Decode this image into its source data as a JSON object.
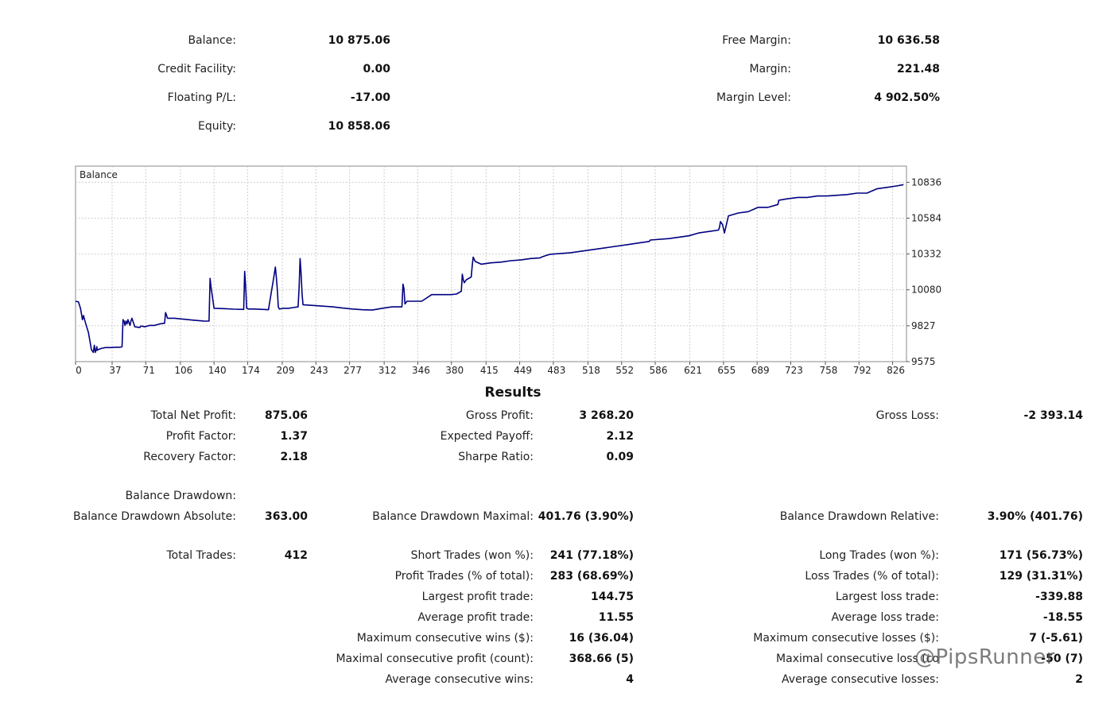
{
  "account": {
    "balance": {
      "label": "Balance:",
      "value": "10 875.06"
    },
    "credit": {
      "label": "Credit Facility:",
      "value": "0.00"
    },
    "floating": {
      "label": "Floating P/L:",
      "value": "-17.00"
    },
    "equity": {
      "label": "Equity:",
      "value": "10 858.06"
    },
    "free_margin": {
      "label": "Free Margin:",
      "value": "10 636.58"
    },
    "margin": {
      "label": "Margin:",
      "value": "221.48"
    },
    "margin_level": {
      "label": "Margin Level:",
      "value": "4 902.50%"
    }
  },
  "chart_data": {
    "type": "line",
    "title": "Balance",
    "x_ticks": [
      "0",
      "37",
      "71",
      "106",
      "140",
      "174",
      "209",
      "243",
      "277",
      "312",
      "346",
      "380",
      "415",
      "449",
      "483",
      "518",
      "552",
      "586",
      "621",
      "655",
      "689",
      "723",
      "758",
      "792",
      "826"
    ],
    "y_ticks": [
      "10836",
      "10584",
      "10332",
      "10080",
      "9827",
      "9575"
    ],
    "xlim": [
      0,
      840
    ],
    "ylim": [
      9575,
      10950
    ],
    "grid": true,
    "line_color": "#000080",
    "series": [
      {
        "x": [
          0,
          3,
          5,
          7,
          8,
          10,
          13,
          15,
          16,
          18,
          19,
          20,
          21,
          21.5,
          22,
          23,
          25,
          27,
          28,
          29,
          30,
          35,
          40,
          45,
          46,
          47,
          48,
          49,
          50,
          51,
          52,
          53,
          55,
          56,
          57,
          60,
          65,
          66,
          67,
          70,
          75,
          80,
          85,
          90,
          91,
          92,
          93,
          100,
          110,
          120,
          130,
          135,
          136,
          137,
          140,
          150,
          160,
          170,
          171,
          172,
          173,
          175,
          180,
          190,
          195,
          200,
          202,
          203,
          204,
          205,
          206,
          210,
          215,
          220,
          225,
          226,
          227,
          228,
          229,
          230,
          240,
          250,
          260,
          270,
          271,
          280,
          290,
          300,
          310,
          320,
          330,
          331,
          332,
          333,
          335,
          340,
          345,
          348,
          350,
          360,
          370,
          380,
          385,
          390,
          391,
          392,
          393,
          395,
          400,
          401,
          402,
          404,
          410,
          420,
          430,
          440,
          450,
          460,
          470,
          471,
          475,
          480,
          500,
          520,
          540,
          560,
          570,
          580,
          581,
          600,
          620,
          630,
          640,
          650,
          651,
          652,
          654,
          655,
          656,
          660,
          670,
          680,
          690,
          700,
          710,
          711,
          720,
          730,
          740,
          750,
          760,
          780,
          790,
          800,
          810,
          820,
          830,
          837
        ],
        "y": [
          10000,
          9995,
          9950,
          9870,
          9900,
          9850,
          9780,
          9700,
          9660,
          9640,
          9690,
          9640,
          9660,
          9680,
          9655,
          9660,
          9665,
          9670,
          9670,
          9672,
          9674,
          9674,
          9676,
          9676,
          9678,
          9680,
          9870,
          9860,
          9830,
          9860,
          9840,
          9870,
          9830,
          9860,
          9880,
          9820,
          9815,
          9825,
          9825,
          9820,
          9830,
          9830,
          9840,
          9845,
          9920,
          9900,
          9880,
          9880,
          9873,
          9866,
          9860,
          9860,
          10160,
          10100,
          9950,
          9948,
          9944,
          9942,
          10210,
          10100,
          9950,
          9945,
          9945,
          9942,
          9940,
          10150,
          10240,
          10170,
          10080,
          9960,
          9945,
          9950,
          9950,
          9955,
          9960,
          10100,
          10300,
          10200,
          10050,
          9975,
          9970,
          9965,
          9960,
          9952,
          9951,
          9945,
          9940,
          9938,
          9950,
          9960,
          9960,
          10120,
          10090,
          9980,
          10000,
          10000,
          10000,
          10000,
          10000,
          10046,
          10046,
          10046,
          10050,
          10070,
          10190,
          10150,
          10130,
          10150,
          10170,
          10250,
          10310,
          10280,
          10260,
          10270,
          10275,
          10285,
          10290,
          10300,
          10305,
          10310,
          10320,
          10330,
          10340,
          10360,
          10380,
          10400,
          10410,
          10420,
          10430,
          10440,
          10460,
          10480,
          10490,
          10500,
          10520,
          10560,
          10540,
          10510,
          10480,
          10600,
          10620,
          10630,
          10660,
          10660,
          10680,
          10710,
          10720,
          10730,
          10730,
          10740,
          10740,
          10750,
          10760,
          10760,
          10790,
          10800,
          10810,
          10820
        ]
      }
    ]
  },
  "results": {
    "title": "Results",
    "col1": [
      {
        "label": "Total Net Profit:",
        "value": "875.06"
      },
      {
        "label": "Profit Factor:",
        "value": "1.37"
      },
      {
        "label": "Recovery Factor:",
        "value": "2.18"
      },
      {
        "label": "Balance Drawdown:",
        "value": ""
      },
      {
        "label": "Balance Drawdown Absolute:",
        "value": "363.00"
      },
      {
        "label": "Total Trades:",
        "value": "412"
      }
    ],
    "col2": [
      {
        "label": "Gross Profit:",
        "value": "3 268.20"
      },
      {
        "label": "Expected Payoff:",
        "value": "2.12"
      },
      {
        "label": "Sharpe Ratio:",
        "value": "0.09"
      },
      {
        "label": "Balance Drawdown Maximal:",
        "value": "401.76 (3.90%)"
      },
      {
        "label": "Short Trades (won %):",
        "value": "241 (77.18%)"
      },
      {
        "label": "Profit Trades (% of total):",
        "value": "283 (68.69%)"
      },
      {
        "label": "Largest profit trade:",
        "value": "144.75"
      },
      {
        "label": "Average profit trade:",
        "value": "11.55"
      },
      {
        "label": "Maximum consecutive wins ($):",
        "value": "16 (36.04)"
      },
      {
        "label": "Maximal consecutive profit (count):",
        "value": "368.66 (5)"
      },
      {
        "label": "Average consecutive wins:",
        "value": "4"
      }
    ],
    "col3": [
      {
        "label": "Gross Loss:",
        "value": "-2 393.14"
      },
      {
        "label": "Balance Drawdown Relative:",
        "value": "3.90% (401.76)"
      },
      {
        "label": "Long Trades (won %):",
        "value": "171 (56.73%)"
      },
      {
        "label": "Loss Trades (% of total):",
        "value": "129 (31.31%)"
      },
      {
        "label": "Largest loss trade:",
        "value": "-339.88"
      },
      {
        "label": "Average loss trade:",
        "value": "-18.55"
      },
      {
        "label": "Maximum consecutive losses ($):",
        "value": "7 (-5.61)"
      },
      {
        "label": "Maximal consecutive loss (co",
        "value": "-50 (7)"
      },
      {
        "label": "Average consecutive losses:",
        "value": "2"
      }
    ]
  },
  "watermark": "@PipsRunner"
}
